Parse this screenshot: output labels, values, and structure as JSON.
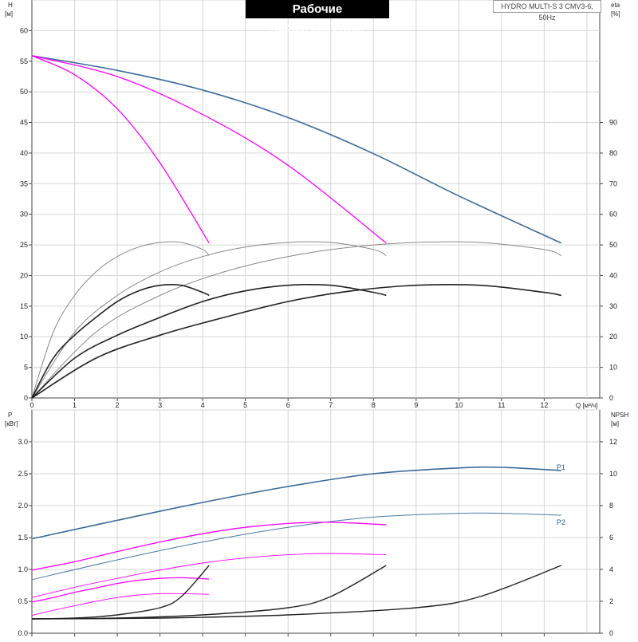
{
  "header": {
    "title": "Рабочие характеристики",
    "model": "HYDRO MULTI-S 3 CMV3-6, 50Hz"
  },
  "chart_data": [
    {
      "type": "line",
      "name": "head-eta",
      "left_axis": {
        "label_line1": "H",
        "label_line2": "[м]",
        "ylim": [
          0,
          65
        ],
        "ticks": [
          0,
          5,
          10,
          15,
          20,
          25,
          30,
          35,
          40,
          45,
          50,
          55,
          60
        ]
      },
      "right_axis": {
        "label_line1": "eta",
        "label_line2": "[%]",
        "ylim": [
          0,
          130
        ],
        "ticks": [
          0,
          10,
          20,
          30,
          40,
          50,
          60,
          70,
          80,
          90
        ]
      },
      "x_axis": {
        "label": "Q [м³/ч]",
        "xlim": [
          0,
          13.3
        ],
        "ticks": [
          0,
          1,
          2,
          3,
          4,
          5,
          6,
          7,
          8,
          9,
          10,
          11,
          12
        ]
      },
      "series": [
        {
          "kind": "head-system",
          "color": "#3a6a9a",
          "width": 1.6,
          "x": [
            0,
            2,
            4,
            6,
            8,
            10,
            12.4
          ],
          "y": [
            55.9,
            53.5,
            50.3,
            45.8,
            39.9,
            33.0,
            25.3
          ]
        },
        {
          "kind": "head-1pump",
          "color": "#ff00ff",
          "width": 1.3,
          "x": [
            0,
            1,
            2,
            3,
            4.15
          ],
          "y": [
            55.9,
            52.8,
            47.2,
            38.4,
            25.3
          ]
        },
        {
          "kind": "head-2pumps",
          "color": "#ff00ff",
          "width": 1.3,
          "x": [
            0,
            2,
            4,
            6,
            8.3
          ],
          "y": [
            55.9,
            52.5,
            46.3,
            38.0,
            25.3
          ]
        },
        {
          "kind": "eta-1pump",
          "color": "#888888",
          "width": 1.0,
          "x": [
            0,
            0.5,
            1,
            1.5,
            2,
            2.5,
            3,
            3.5,
            4,
            4.15
          ],
          "y": [
            0,
            21.5,
            33.5,
            41.2,
            46.2,
            49.3,
            50.8,
            50.8,
            48.5,
            46.5
          ]
        },
        {
          "kind": "eta-2pumps",
          "color": "#888888",
          "width": 1.0,
          "x": [
            0,
            1,
            2,
            3,
            4,
            5,
            6,
            7,
            8,
            8.3
          ],
          "y": [
            0,
            21.5,
            33.5,
            41.2,
            46.2,
            49.3,
            50.8,
            50.8,
            48.5,
            46.5
          ]
        },
        {
          "kind": "eta-3pumps",
          "color": "#888888",
          "width": 1.0,
          "x": [
            0,
            1.5,
            3,
            4.5,
            6,
            7.5,
            9,
            10.5,
            12,
            12.4
          ],
          "y": [
            0,
            21.5,
            33.5,
            41.2,
            46.2,
            49.3,
            50.8,
            50.8,
            48.5,
            46.5
          ]
        },
        {
          "kind": "eta-hydr-1pump",
          "color": "#222222",
          "width": 1.6,
          "x": [
            0,
            0.5,
            1,
            1.5,
            2,
            2.5,
            3,
            3.5,
            4,
            4.15
          ],
          "y": [
            0,
            13.0,
            20.5,
            26.3,
            31.5,
            35.0,
            36.8,
            36.8,
            34.5,
            33.5
          ]
        },
        {
          "kind": "eta-hydr-2pumps",
          "color": "#222222",
          "width": 1.6,
          "x": [
            0,
            1,
            2,
            3,
            4,
            5,
            6,
            7,
            8,
            8.3
          ],
          "y": [
            0,
            13.0,
            20.5,
            26.3,
            31.5,
            35.0,
            36.8,
            36.8,
            34.5,
            33.5
          ]
        },
        {
          "kind": "eta-hydr-3pumps",
          "color": "#222222",
          "width": 1.6,
          "x": [
            0,
            1.5,
            3,
            4.5,
            6,
            7.5,
            9,
            10.5,
            12,
            12.4
          ],
          "y": [
            0,
            13.0,
            20.5,
            26.3,
            31.5,
            35.0,
            36.8,
            36.8,
            34.5,
            33.5
          ]
        }
      ]
    },
    {
      "type": "line",
      "name": "power-npsh",
      "left_axis": {
        "label_line1": "P",
        "label_line2": "[кВт]",
        "ylim": [
          0,
          3.5
        ],
        "ticks": [
          "0.0",
          "0.5",
          "1.0",
          "1.5",
          "2.0",
          "2.5",
          "3.0"
        ]
      },
      "right_axis": {
        "label_line1": "NPSH",
        "label_line2": "[м]",
        "ylim": [
          0,
          14
        ],
        "ticks": [
          0,
          2,
          4,
          6,
          8,
          10,
          12
        ]
      },
      "x_axis": {
        "xlim": [
          0,
          13.3
        ]
      },
      "series": [
        {
          "name": "P1",
          "kind": "p1-system",
          "color": "#3a6a9a",
          "width": 1.6,
          "x": [
            0,
            2,
            4,
            6,
            8,
            10,
            11,
            12.4
          ],
          "y": [
            1.48,
            1.77,
            2.05,
            2.3,
            2.5,
            2.59,
            2.6,
            2.55
          ]
        },
        {
          "name": "P2",
          "kind": "p2-system",
          "color": "#4a78a8",
          "width": 1.0,
          "x": [
            0,
            2,
            4,
            6,
            8,
            10,
            11,
            12.4
          ],
          "y": [
            0.84,
            1.15,
            1.43,
            1.66,
            1.82,
            1.88,
            1.88,
            1.85
          ]
        },
        {
          "kind": "p1-2pumps",
          "color": "#ff00ff",
          "width": 1.3,
          "x": [
            0,
            1,
            2,
            3,
            4,
            5,
            6,
            7,
            8.3
          ],
          "y": [
            0.99,
            1.12,
            1.28,
            1.43,
            1.56,
            1.66,
            1.72,
            1.74,
            1.7
          ]
        },
        {
          "kind": "p2-2pumps",
          "color": "#ff00ff",
          "width": 0.9,
          "x": [
            0,
            1,
            2,
            3,
            4,
            5,
            6,
            7,
            8.3
          ],
          "y": [
            0.56,
            0.72,
            0.86,
            0.99,
            1.1,
            1.18,
            1.23,
            1.25,
            1.23
          ]
        },
        {
          "kind": "p1-1pump",
          "color": "#ff00ff",
          "width": 1.3,
          "x": [
            0,
            0.5,
            1,
            1.5,
            2,
            2.5,
            3,
            3.5,
            4.15
          ],
          "y": [
            0.49,
            0.56,
            0.64,
            0.71,
            0.78,
            0.83,
            0.86,
            0.87,
            0.85
          ]
        },
        {
          "kind": "p2-1pump",
          "color": "#ff00ff",
          "width": 0.9,
          "x": [
            0,
            0.5,
            1,
            1.5,
            2,
            2.5,
            3,
            3.5,
            4.15
          ],
          "y": [
            0.28,
            0.36,
            0.43,
            0.5,
            0.56,
            0.6,
            0.62,
            0.62,
            0.61
          ]
        },
        {
          "kind": "npsh-1pump",
          "color": "#222222",
          "width": 1.4,
          "x": [
            0,
            1,
            2,
            3,
            3.5,
            4.15
          ],
          "y": [
            0.9,
            0.95,
            1.15,
            1.6,
            2.3,
            4.25
          ]
        },
        {
          "kind": "npsh-2pumps",
          "color": "#222222",
          "width": 1.4,
          "x": [
            0,
            2,
            4,
            6,
            7,
            8.3
          ],
          "y": [
            0.9,
            0.95,
            1.15,
            1.6,
            2.3,
            4.25
          ]
        },
        {
          "kind": "npsh-3pumps",
          "color": "#222222",
          "width": 1.4,
          "x": [
            0,
            3,
            6,
            9,
            10.5,
            12.4
          ],
          "y": [
            0.9,
            0.95,
            1.15,
            1.6,
            2.3,
            4.25
          ]
        }
      ]
    }
  ]
}
